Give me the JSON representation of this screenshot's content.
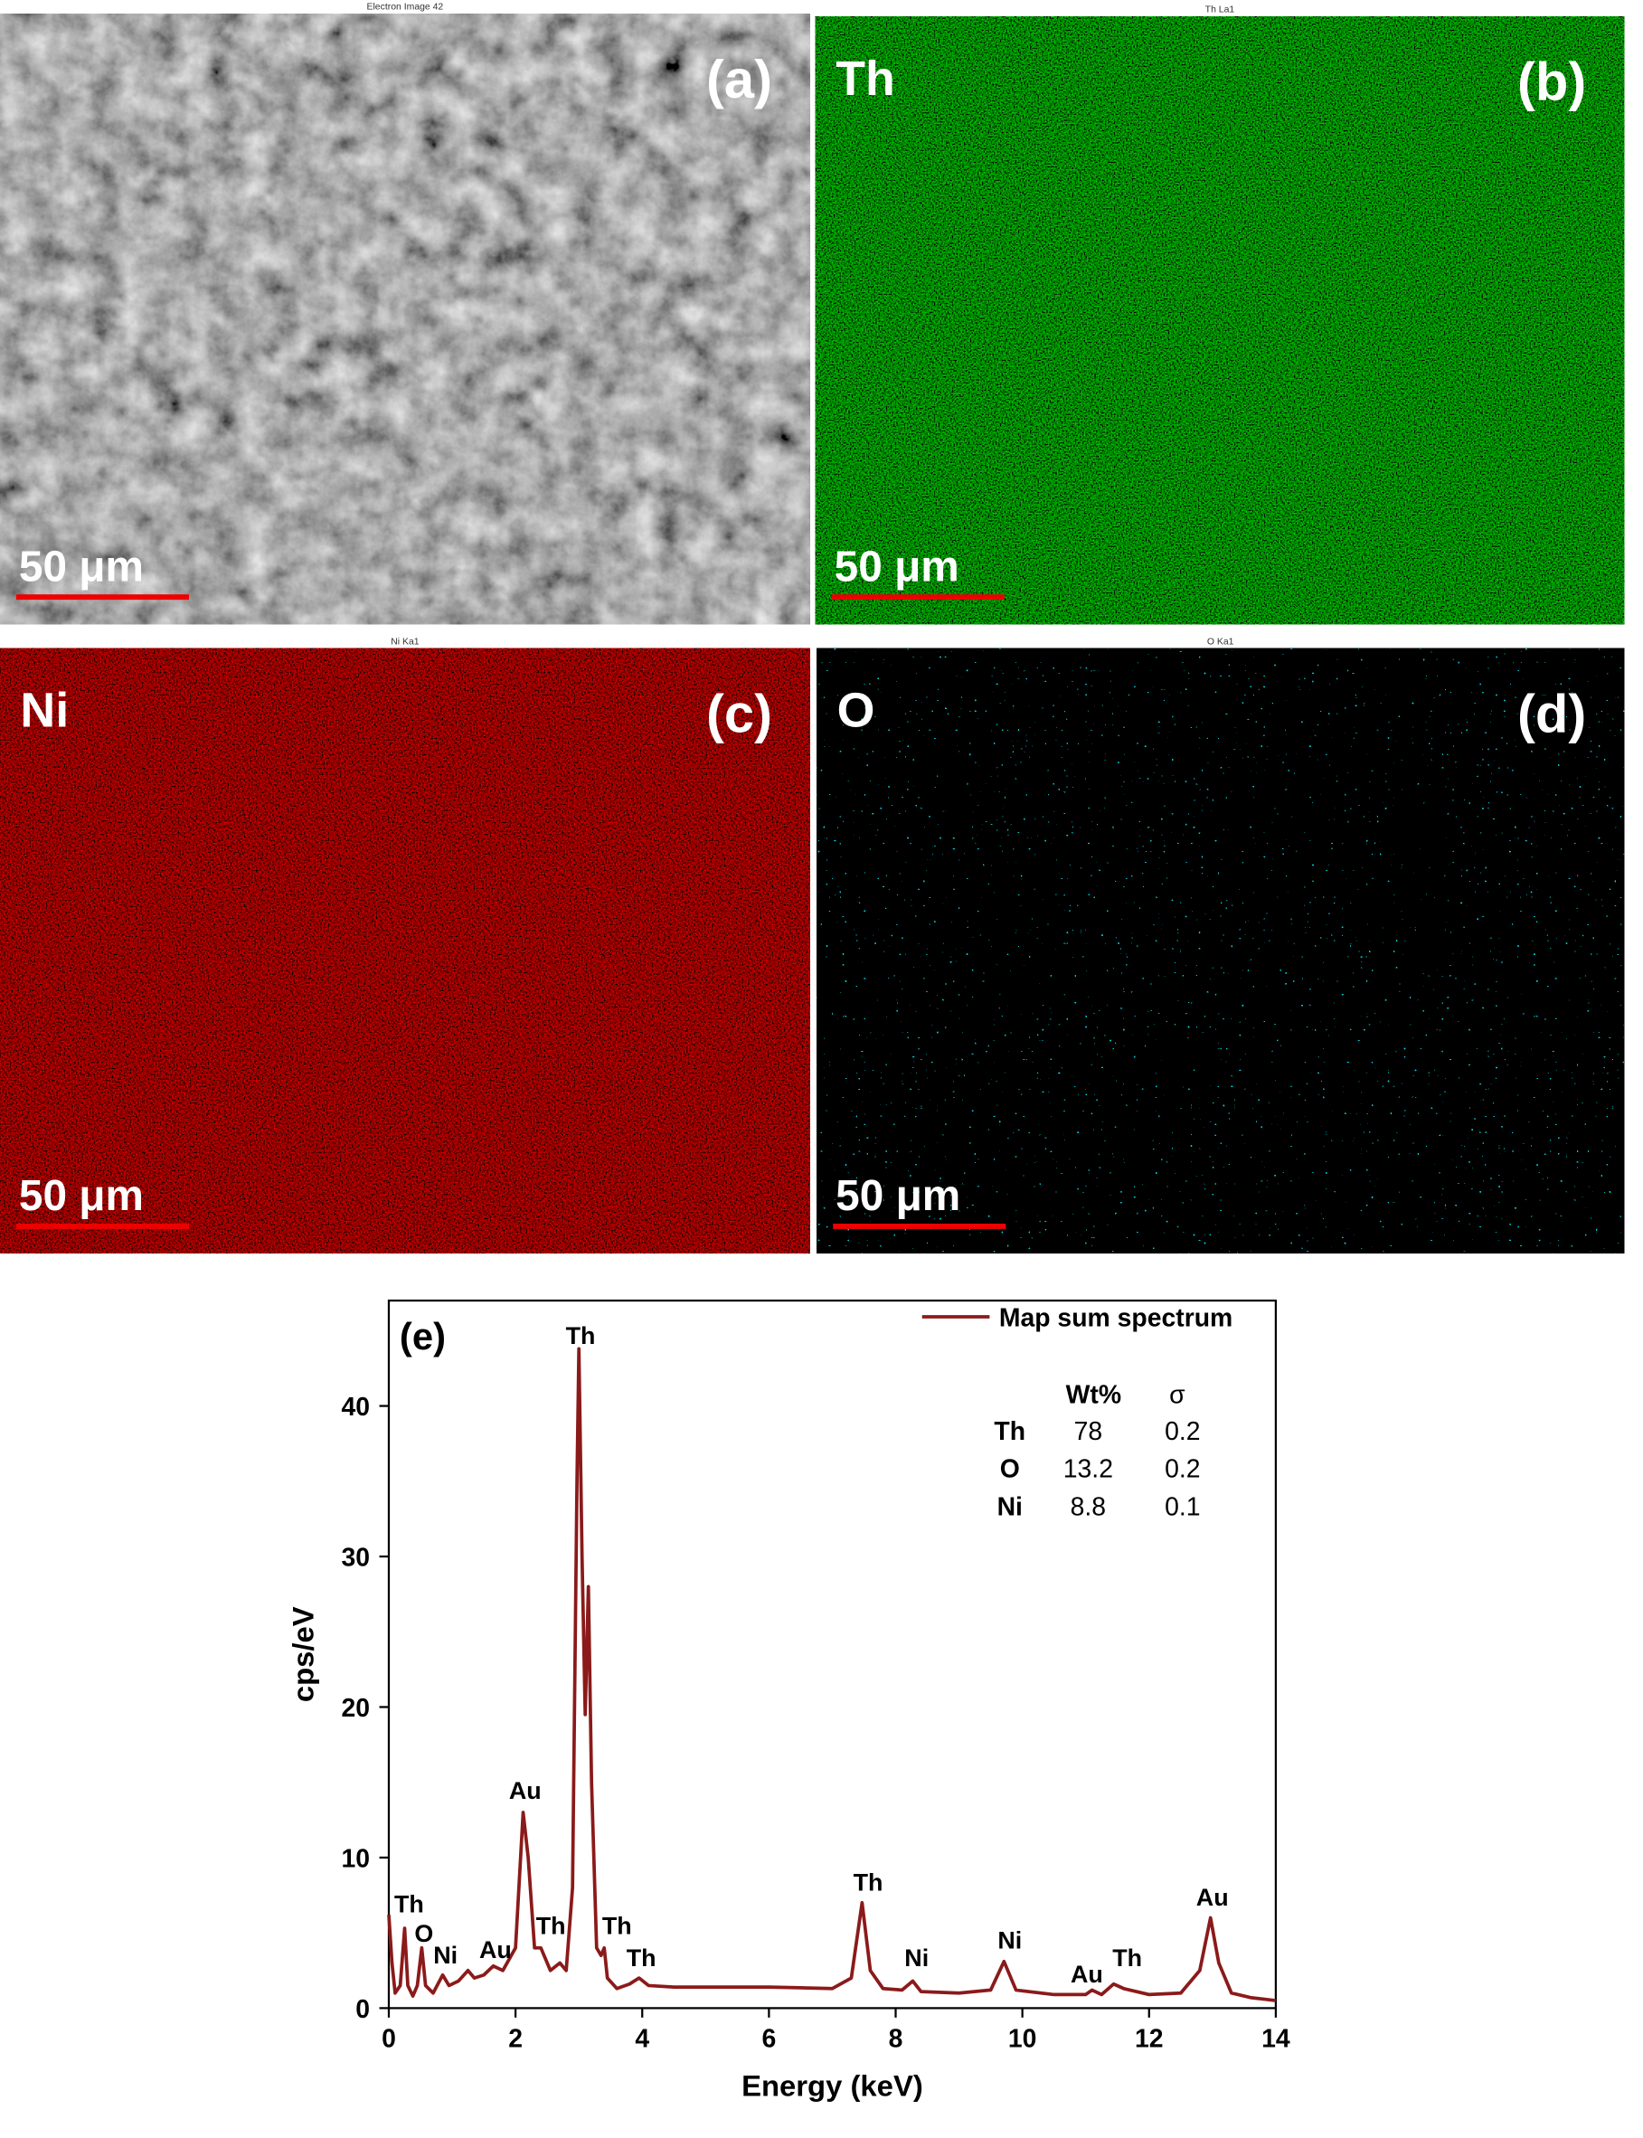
{
  "panels": [
    {
      "title": "Electron Image 42",
      "label": "(a)",
      "scale": "50 μm"
    },
    {
      "title": "Th La1",
      "element": "Th",
      "label": "(b)",
      "scale": "50 μm"
    },
    {
      "title": "Ni Ka1",
      "element": "Ni",
      "label": "(c)",
      "scale": "50 μm"
    },
    {
      "title": "O Ka1",
      "element": "O",
      "label": "(d)",
      "scale": "50 μm"
    }
  ],
  "chart_data": {
    "type": "line",
    "panel_label": "(e)",
    "x_label": "Energy (keV)",
    "y_label": "cps/eV",
    "xlim": [
      0,
      14
    ],
    "ylim": [
      0,
      47
    ],
    "xticks": [
      0,
      2,
      4,
      6,
      8,
      10,
      12,
      14
    ],
    "yticks": [
      0,
      10,
      20,
      30,
      40
    ],
    "legend": "top-right",
    "x": [
      0,
      0.05,
      0.1,
      0.18,
      0.25,
      0.3,
      0.38,
      0.45,
      0.52,
      0.58,
      0.7,
      0.85,
      0.95,
      1.1,
      1.25,
      1.35,
      1.5,
      1.65,
      1.8,
      2.0,
      2.12,
      2.2,
      2.3,
      2.4,
      2.55,
      2.7,
      2.8,
      2.9,
      2.97,
      3.0,
      3.05,
      3.1,
      3.15,
      3.2,
      3.28,
      3.35,
      3.4,
      3.45,
      3.6,
      3.8,
      3.95,
      4.1,
      4.5,
      5,
      6,
      7,
      7.3,
      7.47,
      7.6,
      7.8,
      8.1,
      8.27,
      8.4,
      9.0,
      9.5,
      9.71,
      9.9,
      10.5,
      11,
      11.1,
      11.25,
      11.44,
      11.6,
      12,
      12.5,
      12.8,
      12.97,
      13.1,
      13.3,
      13.6,
      14
    ],
    "series": [
      {
        "name": "Map sum spectrum",
        "color": "#8b1a1a",
        "values": [
          6.2,
          3,
          1,
          1.5,
          5.3,
          1.5,
          0.8,
          1.5,
          4.0,
          1.5,
          1.0,
          2.2,
          1.5,
          1.8,
          2.5,
          2.0,
          2.2,
          2.8,
          2.5,
          4,
          13,
          10,
          4,
          4.0,
          2.5,
          3.0,
          2.5,
          8,
          35,
          43.8,
          30,
          19.5,
          28,
          15,
          4,
          3.5,
          4.0,
          2,
          1.3,
          1.6,
          2.0,
          1.5,
          1.4,
          1.4,
          1.4,
          1.3,
          2,
          7,
          2.5,
          1.3,
          1.2,
          1.8,
          1.1,
          1.0,
          1.2,
          3.1,
          1.2,
          0.9,
          0.9,
          1.2,
          0.9,
          1.6,
          1.3,
          0.9,
          1.0,
          2.5,
          6.0,
          3.0,
          1.0,
          0.7,
          0.5
        ]
      }
    ],
    "annotations": [
      "Th",
      "O",
      "Ni",
      "Au",
      "Au",
      "Th",
      "Th",
      "Th",
      "Th",
      "Ni",
      "Ni",
      "Au",
      "Th",
      "Au",
      "Th"
    ],
    "table": {
      "header": [
        "Wt%",
        "σ"
      ],
      "rows": [
        [
          "Th",
          78,
          0.2
        ],
        [
          "O",
          13.2,
          0.2
        ],
        [
          "Ni",
          8.8,
          0.1
        ]
      ]
    }
  }
}
